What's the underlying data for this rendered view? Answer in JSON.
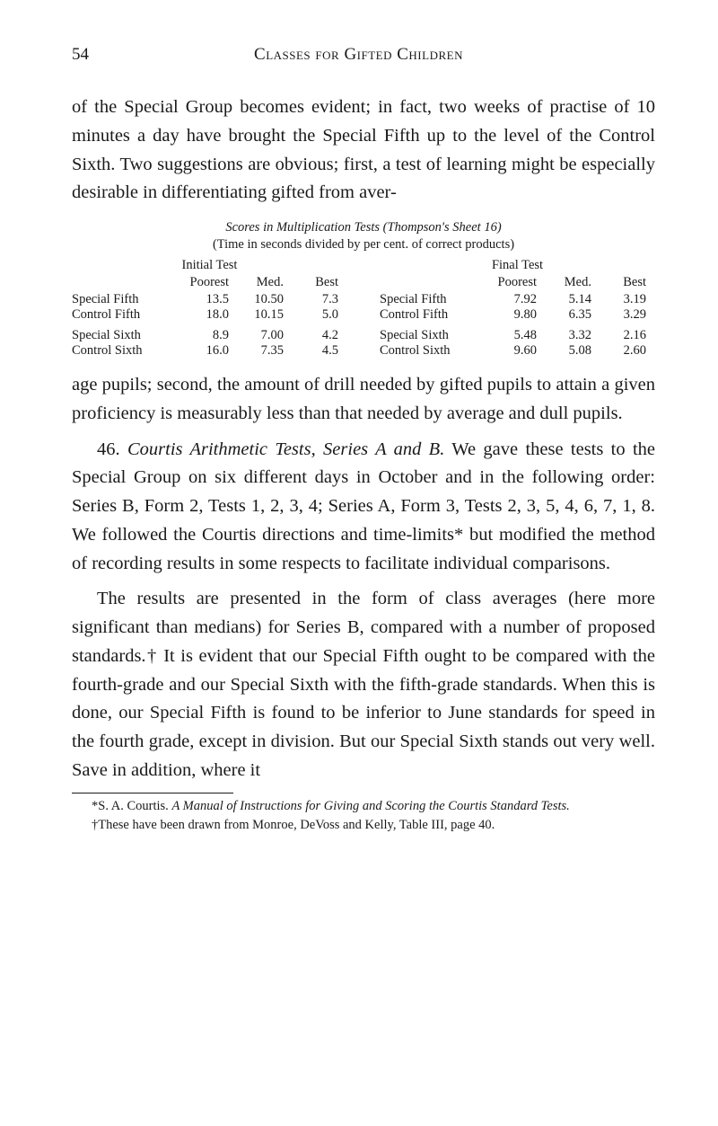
{
  "page_number": "54",
  "running_head": "Classes for Gifted Children",
  "para1a": "of the Special Group becomes evident; in fact, two weeks of practise of 10 minutes a day have brought the Special Fifth up to the level of the Control Sixth. Two sug­gestions are obvious; first, a test of learning might be especially desirable in differentiating gifted from aver-",
  "table": {
    "title": "Scores in Multiplication Tests (Thompson's Sheet 16)",
    "subtitle": "(Time in seconds divided by per cent. of correct products)",
    "left": {
      "heading": "Initial Test",
      "cols": [
        "Poorest",
        "Med.",
        "Best"
      ],
      "rows": [
        {
          "label": "Special Fifth",
          "vals": [
            "13.5",
            "10.50",
            "7.3"
          ]
        },
        {
          "label": "Control Fifth",
          "vals": [
            "18.0",
            "10.15",
            "5.0"
          ]
        },
        {
          "label": "Special Sixth",
          "vals": [
            "8.9",
            "7.00",
            "4.2"
          ]
        },
        {
          "label": "Control Sixth",
          "vals": [
            "16.0",
            "7.35",
            "4.5"
          ]
        }
      ]
    },
    "right": {
      "heading": "Final Test",
      "cols": [
        "Poorest",
        "Med.",
        "Best"
      ],
      "rows": [
        {
          "label": "Special Fifth",
          "vals": [
            "7.92",
            "5.14",
            "3.19"
          ]
        },
        {
          "label": "Control Fifth",
          "vals": [
            "9.80",
            "6.35",
            "3.29"
          ]
        },
        {
          "label": "Special Sixth",
          "vals": [
            "5.48",
            "3.32",
            "2.16"
          ]
        },
        {
          "label": "Control Sixth",
          "vals": [
            "9.60",
            "5.08",
            "2.60"
          ]
        }
      ]
    }
  },
  "para1b": "age pupils; second, the amount of drill needed by gifted pupils to attain a given proficiency is measurably less than that needed by average and dull pupils.",
  "para2_lead": "46.  ",
  "para2_italic": "Courtis Arithmetic Tests, Series A and B.",
  "para2_rest": "  We gave these tests to the Special Group on six different days in October and in the following order: Series B, Form 2, Tests 1, 2, 3, 4; Series A, Form 3, Tests 2, 3, 5, 4, 6, 7, 1, 8. We followed the Courtis directions and time-limits* but modified the method of recording results in some respects to facilitate individual comparisons.",
  "para3": "The results are presented in the form of class aver­ages (here more significant than medians) for Series B, compared with a number of proposed standards.† It is evident that our Special Fifth ought to be compared with the fourth-grade and our Special Sixth with the fifth-grade standards. When this is done, our Special Fifth is found to be inferior to June standards for speed in the fourth grade, except in division. But our Special Sixth stands out very well. Save in addition, where it",
  "fn1_head": "*S. A. Courtis. ",
  "fn1_italic": "A Manual of Instructions for Giving and Scoring the Courtis Standard Tests.",
  "fn2": "†These have been drawn from Monroe, DeVoss and Kelly, Table III, page 40."
}
